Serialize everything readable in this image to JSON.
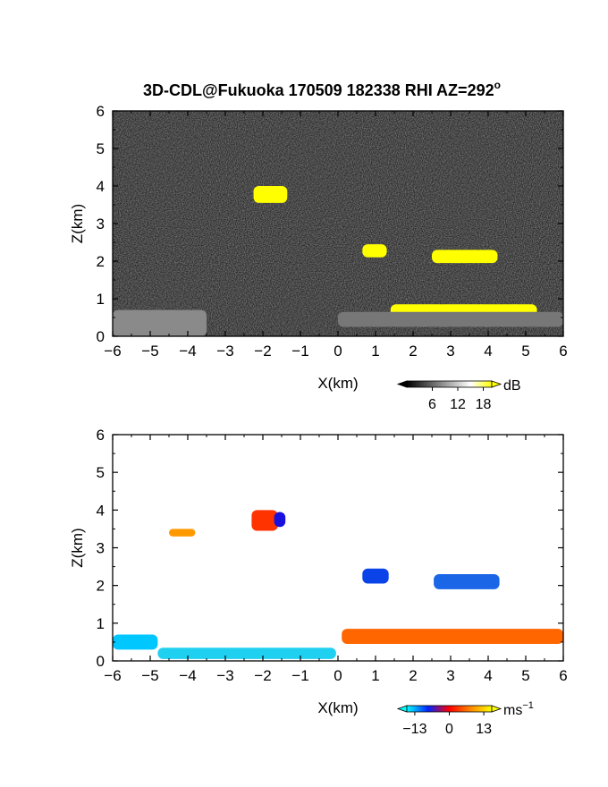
{
  "title": "3D-CDL@Fukuoka 170509 182338 RHI AZ=292",
  "title_degree": "o",
  "chart_data": [
    {
      "type": "heatmap",
      "panel": "reflectivity",
      "xlabel": "X(km)",
      "ylabel": "Z(km)",
      "xlim": [
        -6,
        6
      ],
      "ylim": [
        0,
        6
      ],
      "x_ticks": [
        -6,
        -5,
        -4,
        -3,
        -2,
        -1,
        0,
        1,
        2,
        3,
        4,
        5,
        6
      ],
      "y_ticks": [
        0,
        1,
        2,
        3,
        4,
        5,
        6
      ],
      "background": "noise-dark",
      "colorbar": {
        "unit": "dB",
        "tick_labels": [
          "6",
          "12",
          "18"
        ],
        "ticks": [
          6,
          12,
          18
        ],
        "range": [
          0,
          20
        ],
        "colors": [
          "#000000",
          "#555555",
          "#aaaaaa",
          "#ffffff",
          "#ffff00"
        ]
      },
      "features": [
        {
          "x": [
            -2.25,
            -1.35
          ],
          "z": [
            3.55,
            4.0
          ],
          "value": 20,
          "color": "#ffff00"
        },
        {
          "x": [
            0.65,
            1.3
          ],
          "z": [
            2.1,
            2.45
          ],
          "value": 20,
          "color": "#ffff00"
        },
        {
          "x": [
            2.5,
            4.25
          ],
          "z": [
            1.95,
            2.3
          ],
          "value": 20,
          "color": "#ffff00"
        },
        {
          "x": [
            1.4,
            5.3
          ],
          "z": [
            0.5,
            0.85
          ],
          "value": 20,
          "color": "#ffff00"
        },
        {
          "x": [
            -6,
            -3.5
          ],
          "z": [
            0.0,
            0.7
          ],
          "value": 10,
          "color": "#8a8a8a"
        },
        {
          "x": [
            0.0,
            6.0
          ],
          "z": [
            0.25,
            0.65
          ],
          "value": 9,
          "color": "#777777"
        }
      ]
    },
    {
      "type": "heatmap",
      "panel": "doppler-velocity",
      "xlabel": "X(km)",
      "ylabel": "Z(km)",
      "xlim": [
        -6,
        6
      ],
      "ylim": [
        0,
        6
      ],
      "x_ticks": [
        -6,
        -5,
        -4,
        -3,
        -2,
        -1,
        0,
        1,
        2,
        3,
        4,
        5,
        6
      ],
      "y_ticks": [
        0,
        1,
        2,
        3,
        4,
        5,
        6
      ],
      "colorbar": {
        "unit": "ms",
        "unit_exponent": "-1",
        "tick_labels": [
          "-13",
          "0",
          "13"
        ],
        "ticks": [
          -13,
          0,
          13
        ],
        "range": [
          -16,
          16
        ],
        "colors": [
          "#00ffff",
          "#0022ff",
          "#ff0000",
          "#ff8800",
          "#ffff00"
        ]
      },
      "features": [
        {
          "x": [
            -2.3,
            -1.6
          ],
          "z": [
            3.45,
            4.0
          ],
          "value": 2,
          "color": "#ff3300"
        },
        {
          "x": [
            -1.7,
            -1.4
          ],
          "z": [
            3.55,
            3.95
          ],
          "value": -10,
          "color": "#1a10dd"
        },
        {
          "x": [
            -4.5,
            -3.8
          ],
          "z": [
            3.3,
            3.5
          ],
          "value": 8,
          "color": "#ff9900"
        },
        {
          "x": [
            0.65,
            1.35
          ],
          "z": [
            2.05,
            2.45
          ],
          "value": -9,
          "color": "#0a44e8"
        },
        {
          "x": [
            2.55,
            4.3
          ],
          "z": [
            1.9,
            2.3
          ],
          "value": -7,
          "color": "#1a66e6"
        },
        {
          "x": [
            0.1,
            6.0
          ],
          "z": [
            0.45,
            0.85
          ],
          "value": 6,
          "color": "#ff6600"
        },
        {
          "x": [
            -6,
            -4.8
          ],
          "z": [
            0.3,
            0.7
          ],
          "value": -12,
          "color": "#00c8ff"
        },
        {
          "x": [
            -4.8,
            -0.05
          ],
          "z": [
            0.05,
            0.35
          ],
          "value": -11,
          "color": "#20d0f0"
        }
      ]
    }
  ]
}
